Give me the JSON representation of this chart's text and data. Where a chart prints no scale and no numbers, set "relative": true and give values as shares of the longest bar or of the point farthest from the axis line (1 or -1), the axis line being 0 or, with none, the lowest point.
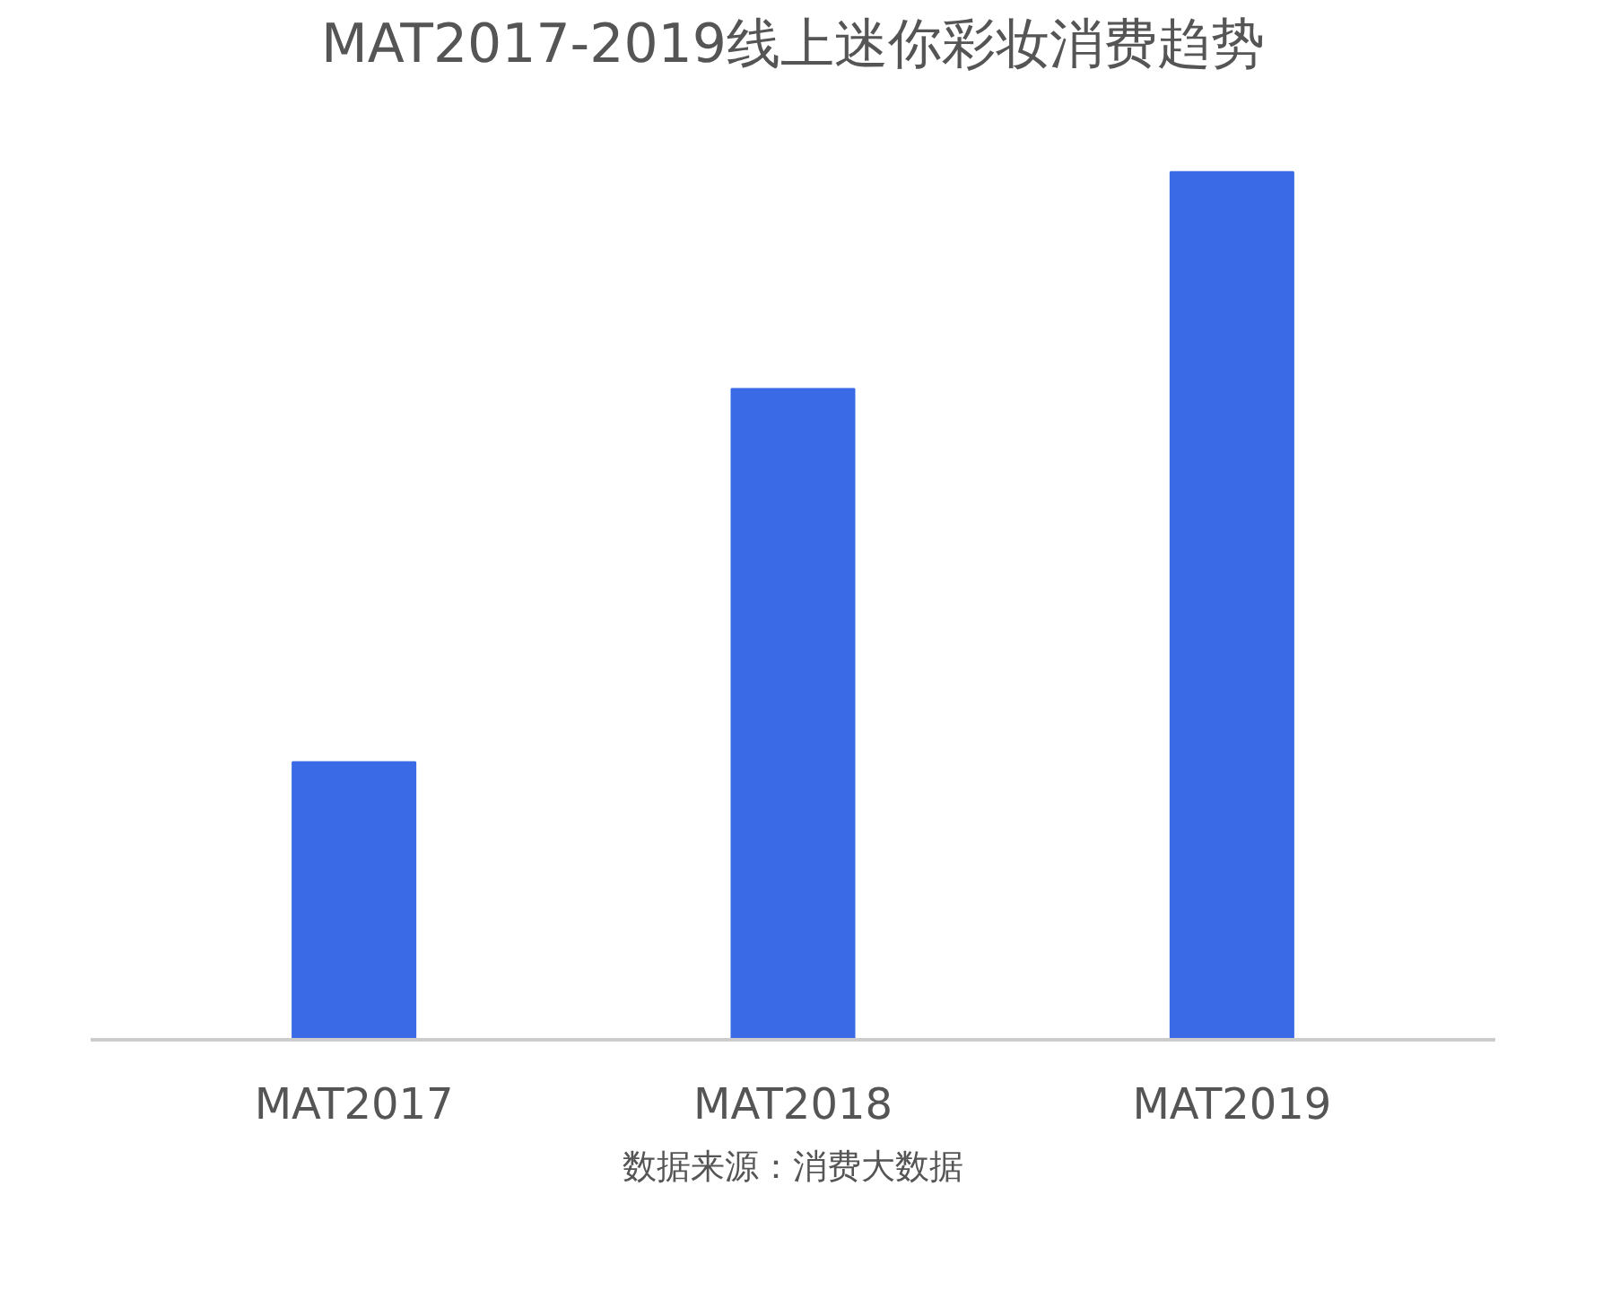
{
  "chart_data": {
    "type": "bar",
    "title": "MAT2017-2019线上迷你彩妆消费趋势",
    "categories": [
      "MAT2017",
      "MAT2018",
      "MAT2019"
    ],
    "values": [
      0.32,
      0.75,
      1
    ],
    "color": "#3a6ae6",
    "relative": true,
    "grid": false,
    "annotations": [
      "数据来源：消费大数据"
    ]
  }
}
